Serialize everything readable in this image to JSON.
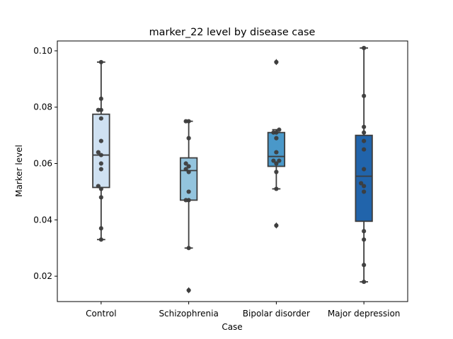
{
  "chart_data": {
    "type": "box",
    "title": "marker_22 level by disease case",
    "xlabel": "Case",
    "ylabel": "Marker level",
    "ylim": [
      0.011,
      0.1035
    ],
    "yticks": [
      0.02,
      0.04,
      0.06,
      0.08,
      0.1
    ],
    "ytick_labels": [
      "0.02",
      "0.04",
      "0.06",
      "0.08",
      "0.10"
    ],
    "grid": false,
    "categories": [
      "Control",
      "Schizophrenia",
      "Bipolar disorder",
      "Major depression"
    ],
    "colors": [
      "#cfe1f2",
      "#93c4de",
      "#4a98c9",
      "#2164ab"
    ],
    "boxes": [
      {
        "whisker_low": 0.033,
        "q1": 0.0515,
        "median": 0.063,
        "q3": 0.0775,
        "whisker_high": 0.096,
        "outliers": []
      },
      {
        "whisker_low": 0.03,
        "q1": 0.047,
        "median": 0.0575,
        "q3": 0.062,
        "whisker_high": 0.075,
        "outliers": [
          0.015
        ]
      },
      {
        "whisker_low": 0.051,
        "q1": 0.059,
        "median": 0.0625,
        "q3": 0.071,
        "whisker_high": 0.072,
        "outliers": [
          0.096,
          0.038
        ]
      },
      {
        "whisker_low": 0.018,
        "q1": 0.0395,
        "median": 0.0555,
        "q3": 0.07,
        "whisker_high": 0.101,
        "outliers": []
      }
    ],
    "points": [
      [
        0.096,
        0.083,
        0.079,
        0.079,
        0.076,
        0.068,
        0.064,
        0.063,
        0.06,
        0.058,
        0.052,
        0.051,
        0.048,
        0.037,
        0.033
      ],
      [
        0.075,
        0.075,
        0.069,
        0.06,
        0.058,
        0.059,
        0.057,
        0.05,
        0.047,
        0.047,
        0.03,
        0.015
      ],
      [
        0.096,
        0.072,
        0.071,
        0.071,
        0.069,
        0.064,
        0.061,
        0.061,
        0.06,
        0.057,
        0.051,
        0.038
      ],
      [
        0.101,
        0.084,
        0.073,
        0.071,
        0.068,
        0.065,
        0.058,
        0.053,
        0.052,
        0.05,
        0.036,
        0.033,
        0.024,
        0.018
      ]
    ],
    "point_offsets": [
      [
        0.0,
        0.0,
        -0.17,
        0.0,
        0.0,
        0.0,
        -0.17,
        0.0,
        0.0,
        0.0,
        -0.17,
        0.0,
        0.0,
        0.0,
        0.0
      ],
      [
        -0.17,
        0.0,
        0.0,
        -0.17,
        -0.17,
        0.0,
        0.0,
        0.0,
        -0.17,
        0.0,
        0.0,
        0.0
      ],
      [
        0.0,
        0.17,
        -0.17,
        0.0,
        0.0,
        0.0,
        -0.17,
        0.17,
        0.0,
        0.0,
        0.0,
        0.0
      ],
      [
        0.0,
        0.0,
        0.0,
        0.0,
        0.0,
        0.0,
        0.0,
        -0.17,
        0.0,
        0.0,
        0.0,
        0.0,
        0.0,
        0.0
      ]
    ]
  }
}
